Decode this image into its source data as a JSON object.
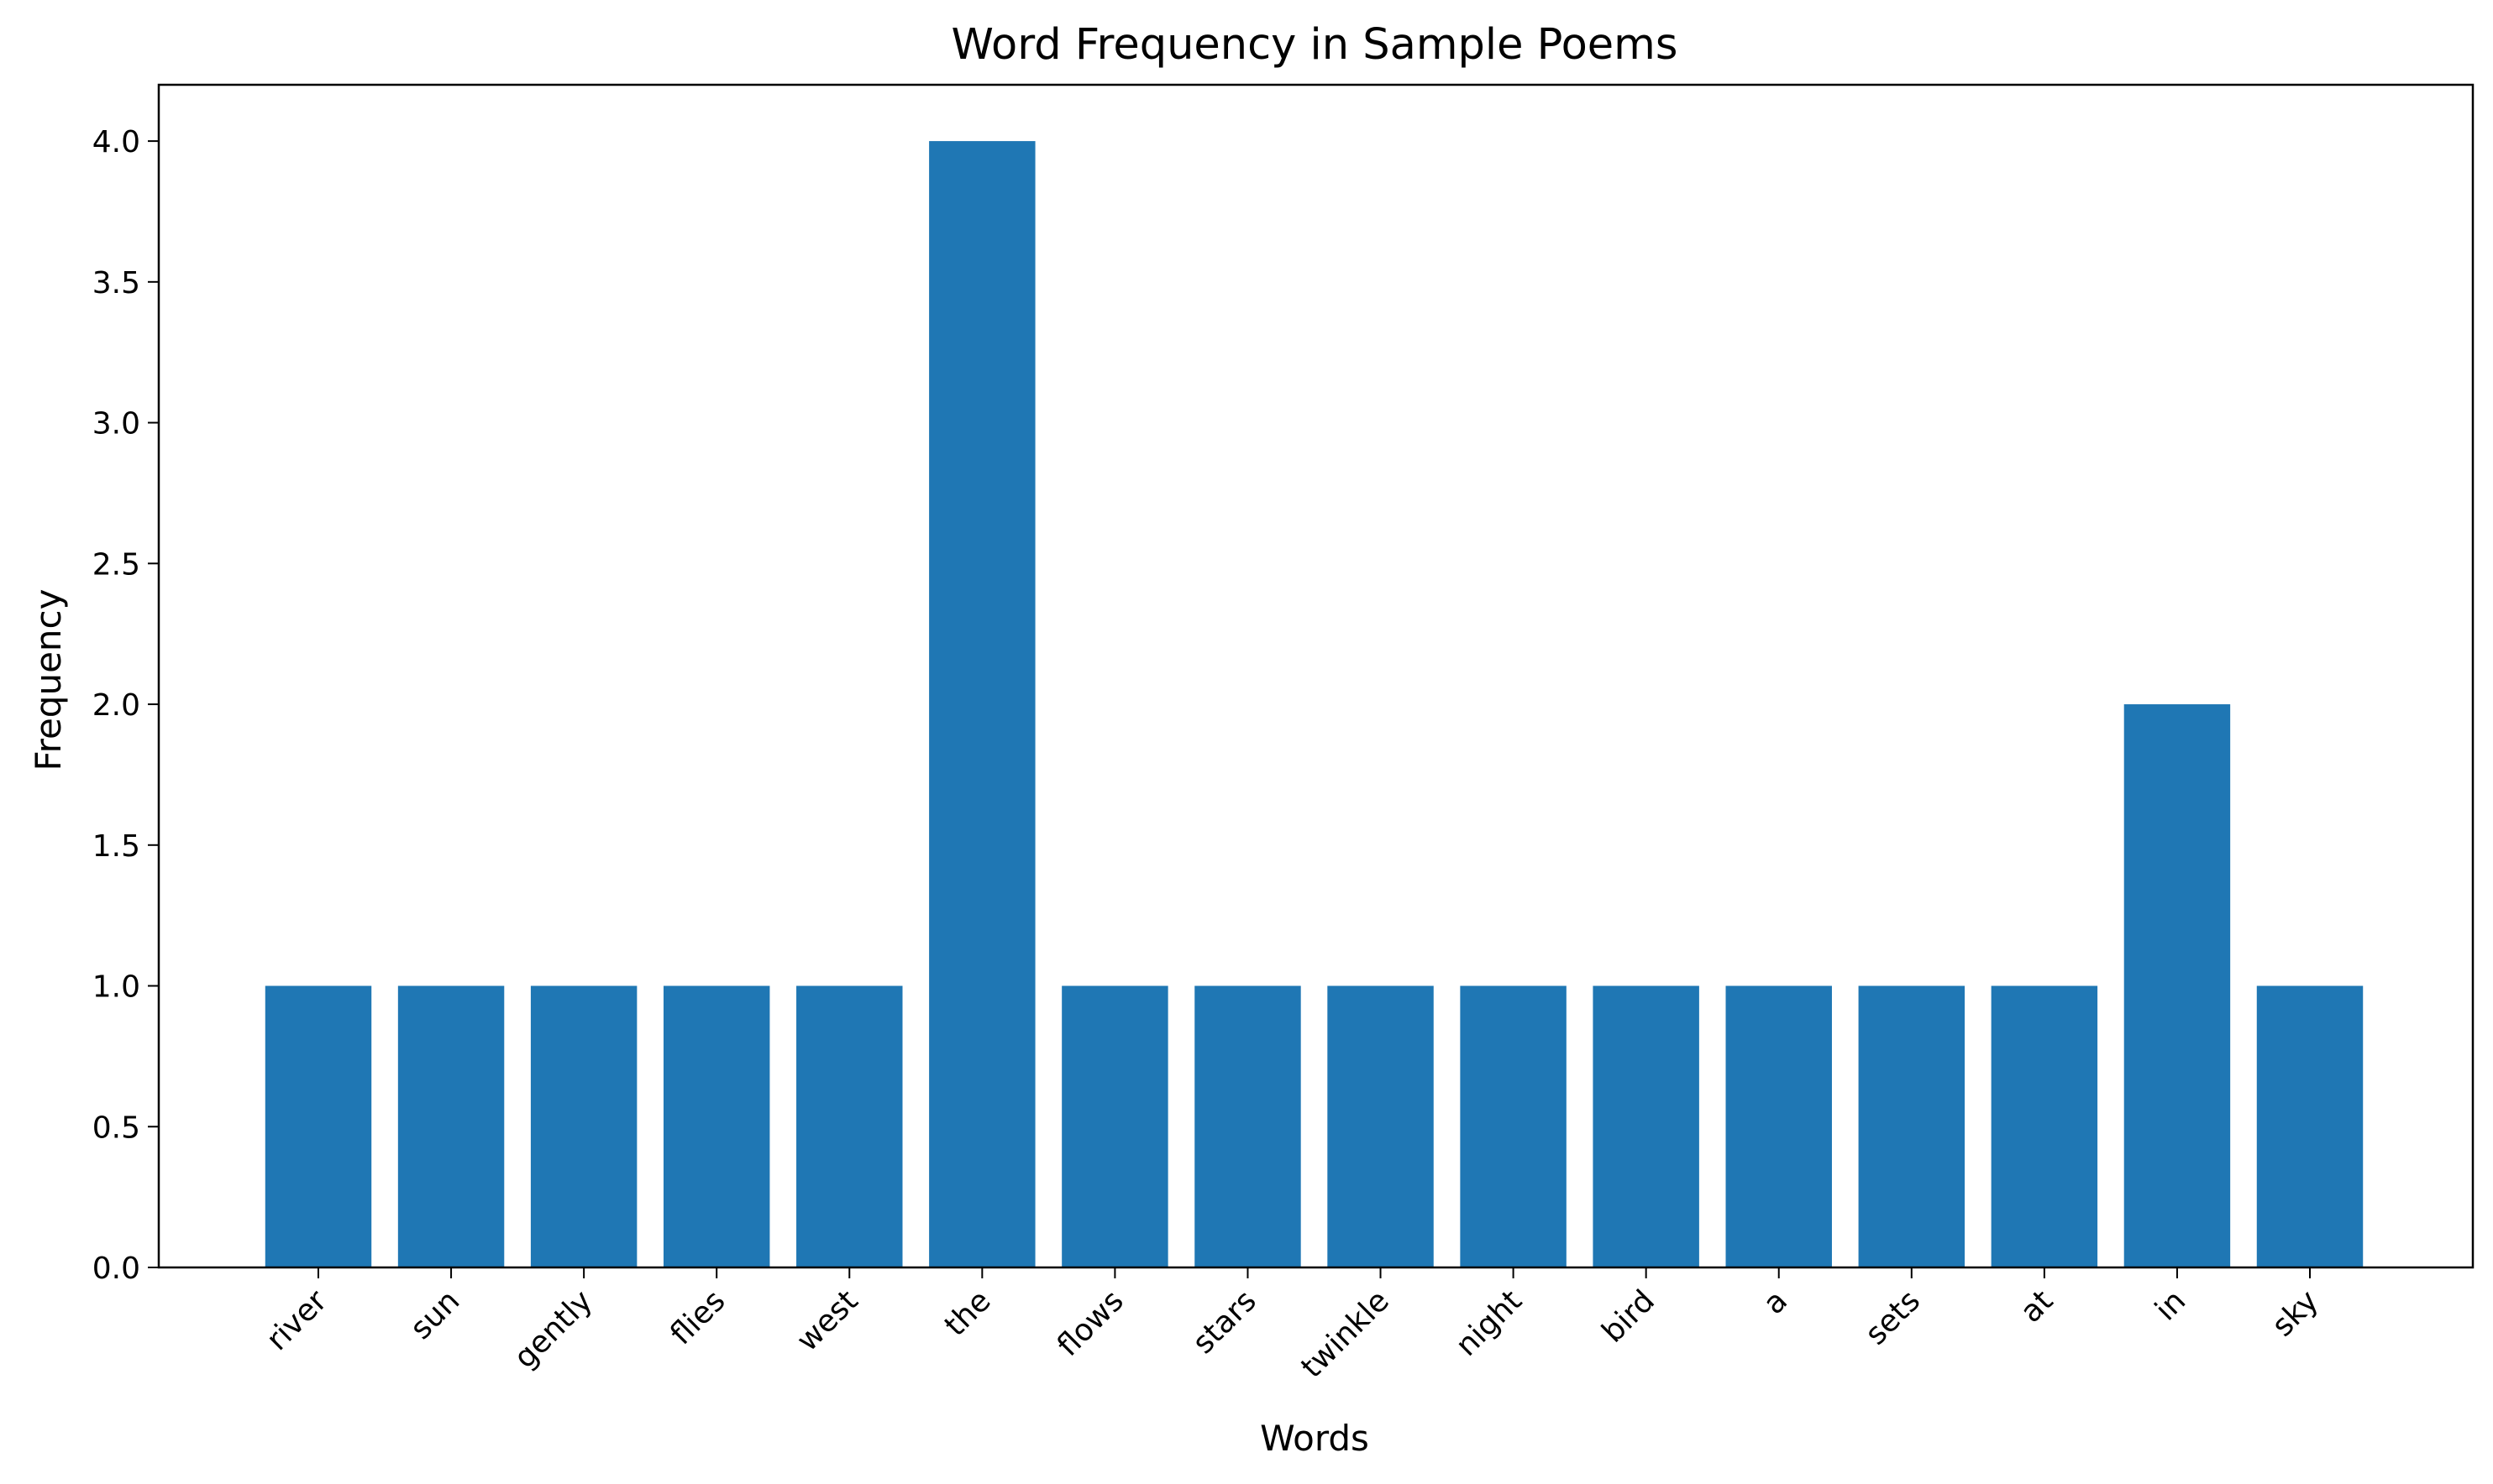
{
  "chart_data": {
    "type": "bar",
    "title": "Word Frequency in Sample Poems",
    "xlabel": "Words",
    "ylabel": "Frequency",
    "categories": [
      "river",
      "sun",
      "gently",
      "flies",
      "west",
      "the",
      "flows",
      "stars",
      "twinkle",
      "night",
      "bird",
      "a",
      "sets",
      "at",
      "in",
      "sky"
    ],
    "values": [
      1,
      1,
      1,
      1,
      1,
      4,
      1,
      1,
      1,
      1,
      1,
      1,
      1,
      1,
      2,
      1
    ],
    "ylim": [
      0,
      4.2
    ],
    "yticks": [
      "0.0",
      "0.5",
      "1.0",
      "1.5",
      "2.0",
      "2.5",
      "3.0",
      "3.5",
      "4.0"
    ],
    "bar_color": "#1f77b4",
    "grid": false,
    "legend": false,
    "xtick_rotation": "45 degrees"
  }
}
